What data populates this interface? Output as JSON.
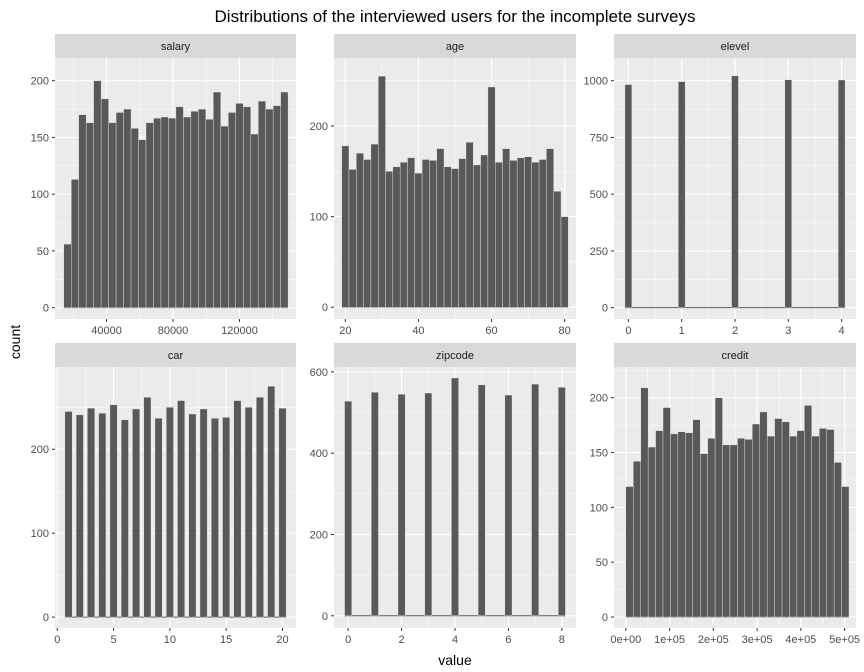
{
  "title": "Distributions of the interviewed users for the incomplete surveys",
  "xlabel": "value",
  "ylabel": "count",
  "colors": {
    "panel_bg": "#ebebeb",
    "strip_bg": "#d9d9d9",
    "grid_major": "#ffffff",
    "bar_fill": "#595959",
    "tick_text": "#4d4d4d"
  },
  "chart_data": [
    {
      "type": "bar",
      "panel": "salary",
      "strip_label": "salary",
      "x": [
        16500,
        21000,
        25500,
        30000,
        34500,
        39000,
        43500,
        48000,
        52500,
        57000,
        61500,
        66000,
        70500,
        75000,
        79500,
        84000,
        88500,
        93000,
        97500,
        102000,
        106500,
        111000,
        115500,
        120000,
        124500,
        129000,
        133500,
        138000,
        142500,
        147000
      ],
      "values": [
        56,
        113,
        170,
        163,
        200,
        184,
        163,
        172,
        175,
        158,
        148,
        163,
        167,
        168,
        167,
        177,
        168,
        173,
        175,
        166,
        190,
        160,
        172,
        180,
        177,
        153,
        182,
        175,
        178,
        190
      ],
      "bar_width": 4500,
      "xlim": [
        9000,
        154000
      ],
      "xticks": [
        40000,
        80000,
        120000
      ],
      "xtick_labels": [
        "40000",
        "80000",
        "120000"
      ],
      "ylim": [
        -10,
        220
      ],
      "yticks": [
        0,
        50,
        100,
        150,
        200
      ],
      "ytick_labels": [
        "0",
        "50",
        "100",
        "150",
        "200"
      ]
    },
    {
      "type": "bar",
      "panel": "age",
      "strip_label": "age",
      "x": [
        20,
        22,
        24,
        26,
        28,
        30,
        32,
        34,
        36,
        38,
        40,
        42,
        44,
        46,
        48,
        50,
        52,
        54,
        56,
        58,
        60,
        62,
        64,
        66,
        68,
        70,
        72,
        74,
        76,
        78,
        80
      ],
      "values": [
        178,
        152,
        170,
        163,
        180,
        255,
        150,
        155,
        160,
        165,
        148,
        163,
        162,
        175,
        155,
        153,
        164,
        182,
        157,
        168,
        243,
        160,
        175,
        162,
        165,
        166,
        160,
        163,
        175,
        128,
        100
      ],
      "bar_width": 2,
      "xlim": [
        16.9,
        83.1
      ],
      "xticks": [
        20,
        40,
        60,
        80
      ],
      "xtick_labels": [
        "20",
        "40",
        "60",
        "80"
      ],
      "ylim": [
        -13,
        275
      ],
      "yticks": [
        0,
        100,
        200
      ],
      "ytick_labels": [
        "0",
        "100",
        "200"
      ]
    },
    {
      "type": "bar",
      "panel": "elevel",
      "strip_label": "elevel",
      "x": [
        0,
        1,
        2,
        3,
        4
      ],
      "values": [
        983,
        996,
        1022,
        1004,
        1003
      ],
      "bar_width": 0.13,
      "xlim": [
        -0.27,
        4.27
      ],
      "xticks": [
        0,
        1,
        2,
        3,
        4
      ],
      "xtick_labels": [
        "0",
        "1",
        "2",
        "3",
        "4"
      ],
      "ylim": [
        -50,
        1100
      ],
      "yticks": [
        0,
        250,
        500,
        750,
        1000
      ],
      "ytick_labels": [
        "0",
        "250",
        "500",
        "750",
        "1000"
      ]
    },
    {
      "type": "bar",
      "panel": "car",
      "strip_label": "car",
      "x": [
        1,
        2,
        3,
        4,
        5,
        6,
        7,
        8,
        9,
        10,
        11,
        12,
        13,
        14,
        15,
        16,
        17,
        18,
        19,
        20
      ],
      "values": [
        245,
        241,
        249,
        243,
        253,
        235,
        248,
        262,
        237,
        250,
        258,
        242,
        248,
        237,
        238,
        258,
        250,
        262,
        275,
        249
      ],
      "bar_width": 0.65,
      "xlim": [
        -0.2,
        21.2
      ],
      "xticks": [
        0,
        5,
        10,
        15,
        20
      ],
      "xtick_labels": [
        "0",
        "5",
        "10",
        "15",
        "20"
      ],
      "ylim": [
        -13,
        298
      ],
      "yticks": [
        0,
        100,
        200
      ],
      "ytick_labels": [
        "0",
        "100",
        "200"
      ]
    },
    {
      "type": "bar",
      "panel": "zipcode",
      "strip_label": "zipcode",
      "x": [
        0,
        1,
        2,
        3,
        4,
        5,
        6,
        7,
        8
      ],
      "values": [
        528,
        550,
        545,
        548,
        585,
        568,
        543,
        570,
        562
      ],
      "bar_width": 0.27,
      "xlim": [
        -0.53,
        8.53
      ],
      "xticks": [
        0,
        2,
        4,
        6,
        8
      ],
      "xtick_labels": [
        "0",
        "2",
        "4",
        "6",
        "8"
      ],
      "ylim": [
        -30,
        612
      ],
      "yticks": [
        0,
        200,
        400,
        600
      ],
      "ytick_labels": [
        "0",
        "200",
        "400",
        "600"
      ]
    },
    {
      "type": "bar",
      "panel": "credit",
      "strip_label": "credit",
      "x": [
        8500,
        25500,
        42500,
        59500,
        76500,
        93500,
        110500,
        127500,
        144500,
        161500,
        178500,
        195500,
        212500,
        229500,
        246500,
        263500,
        280500,
        297500,
        314500,
        331500,
        348500,
        365500,
        382500,
        399500,
        416500,
        433500,
        450500,
        467500,
        484500,
        501500
      ],
      "values": [
        119,
        142,
        209,
        155,
        170,
        191,
        167,
        169,
        168,
        180,
        149,
        163,
        200,
        157,
        157,
        163,
        162,
        176,
        187,
        165,
        181,
        178,
        165,
        170,
        193,
        165,
        172,
        171,
        141,
        119
      ],
      "bar_width": 17000,
      "xlim": [
        -27000,
        526000
      ],
      "xticks": [
        0,
        100000,
        200000,
        300000,
        400000,
        500000
      ],
      "xtick_labels": [
        "0e+00",
        "1e+05",
        "2e+05",
        "3e+05",
        "4e+05",
        "5e+05"
      ],
      "ylim": [
        -10,
        228
      ],
      "yticks": [
        0,
        50,
        100,
        150,
        200
      ],
      "ytick_labels": [
        "0",
        "50",
        "100",
        "150",
        "200"
      ]
    }
  ]
}
